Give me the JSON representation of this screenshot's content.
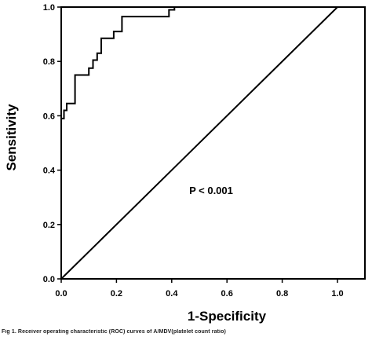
{
  "chart_data": {
    "type": "line",
    "xlabel": "1-Specificity",
    "ylabel": "Sensitivity",
    "xlim": [
      0,
      1.0
    ],
    "ylim": [
      0,
      1.0
    ],
    "x_ticks": [
      "0.0",
      "0.2",
      "0.4",
      "0.6",
      "0.8",
      "1.0"
    ],
    "y_ticks": [
      "0.0",
      "0.2",
      "0.4",
      "0.6",
      "0.8",
      "1.0"
    ],
    "annotation": "P < 0.001",
    "series": [
      {
        "points": [
          [
            0,
            0
          ],
          [
            0,
            0.59
          ],
          [
            0.01,
            0.59
          ],
          [
            0.01,
            0.62
          ],
          [
            0.02,
            0.62
          ],
          [
            0.02,
            0.645
          ],
          [
            0.05,
            0.645
          ],
          [
            0.05,
            0.75
          ],
          [
            0.1,
            0.75
          ],
          [
            0.1,
            0.775
          ],
          [
            0.115,
            0.775
          ],
          [
            0.115,
            0.805
          ],
          [
            0.13,
            0.805
          ],
          [
            0.13,
            0.83
          ],
          [
            0.145,
            0.83
          ],
          [
            0.145,
            0.885
          ],
          [
            0.19,
            0.885
          ],
          [
            0.19,
            0.91
          ],
          [
            0.22,
            0.91
          ],
          [
            0.22,
            0.965
          ],
          [
            0.39,
            0.965
          ],
          [
            0.39,
            0.99
          ],
          [
            0.41,
            0.99
          ],
          [
            0.41,
            1.0
          ],
          [
            1.0,
            1.0
          ]
        ]
      },
      {
        "points": [
          [
            0,
            0
          ],
          [
            1.0,
            1.0
          ]
        ]
      }
    ],
    "grid": false
  },
  "caption": "Fig 1. Receiver operating characteristic (ROC) curves of A/MDV(platelet count ratio)"
}
